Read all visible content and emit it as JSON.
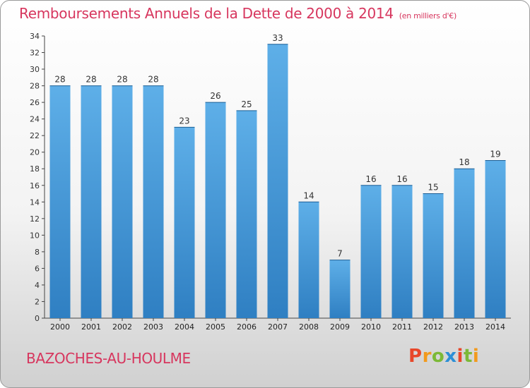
{
  "header": {
    "title": "Remboursements Annuels de la Dette de 2000 à 2014",
    "subtitle": "(en milliers d'€)"
  },
  "footer": {
    "location": "BAZOCHES-AU-HOULME",
    "logo": "Proxiti"
  },
  "colors": {
    "title": "#d7365e",
    "bar_top": "#5eafe8",
    "bar_bottom": "#2f7fc2",
    "logo_letters": [
      "#e8472a",
      "#f29a1d",
      "#7cb937",
      "#2c8fd6",
      "#e8472a",
      "#7cb937",
      "#f29a1d"
    ]
  },
  "chart_data": {
    "type": "bar",
    "categories": [
      "2000",
      "2001",
      "2002",
      "2003",
      "2004",
      "2005",
      "2006",
      "2007",
      "2008",
      "2009",
      "2010",
      "2011",
      "2012",
      "2013",
      "2014"
    ],
    "values": [
      28,
      28,
      28,
      28,
      23,
      26,
      25,
      33,
      14,
      7,
      16,
      16,
      15,
      18,
      19
    ],
    "ylim": [
      0,
      34
    ],
    "yticks": [
      0,
      2,
      4,
      6,
      8,
      10,
      12,
      14,
      16,
      18,
      20,
      22,
      24,
      26,
      28,
      30,
      32,
      34
    ],
    "grid": false,
    "data_labels": true
  }
}
